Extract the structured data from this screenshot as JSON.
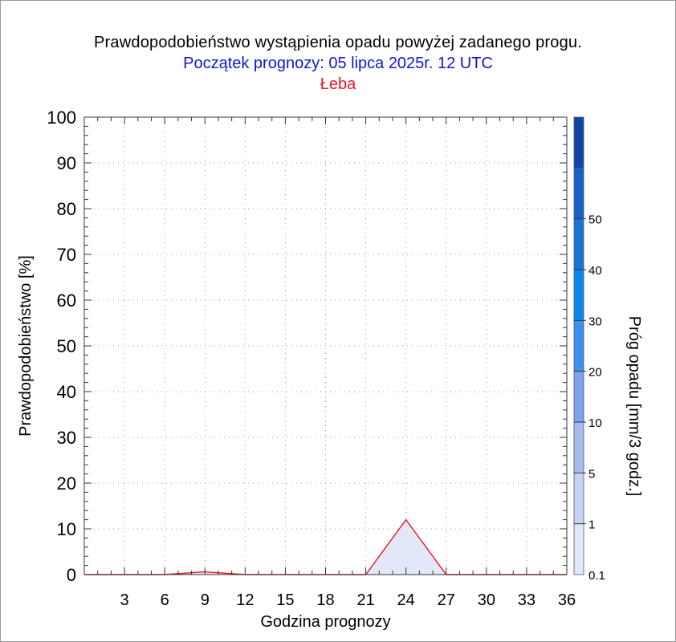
{
  "header": {
    "title": "Prawdopodobieństwo wystąpienia opadu powyżej zadanego progu.",
    "subtitle": "Początek prognozy: 05 lipca 2025r. 12 UTC",
    "location": "Łeba"
  },
  "chart_data": {
    "type": "area",
    "xlabel": "Godzina prognozy",
    "ylabel": "Prawdopodobieństwo [%]",
    "xlim": [
      0,
      36
    ],
    "ylim": [
      0,
      100
    ],
    "x_ticks": [
      3,
      6,
      9,
      12,
      15,
      18,
      21,
      24,
      27,
      30,
      33,
      36
    ],
    "y_ticks": [
      0,
      10,
      20,
      30,
      40,
      50,
      60,
      70,
      80,
      90,
      100
    ],
    "grid": true,
    "x": [
      0,
      3,
      6,
      9,
      12,
      15,
      18,
      21,
      24,
      27,
      30,
      33,
      36
    ],
    "series": [
      {
        "threshold": "0.1",
        "color": "#e2e8f8",
        "values": [
          0,
          0,
          0,
          0.6,
          0,
          0,
          0,
          0,
          12,
          0,
          0,
          0,
          0
        ]
      }
    ],
    "outline_color": "#e8152a",
    "colorbar": {
      "label": "Próg opadu [mm/3 godz.]",
      "levels": [
        "0.1",
        "1",
        "5",
        "10",
        "20",
        "30",
        "40",
        "50"
      ],
      "colors": [
        "#e2e8f8",
        "#c6d2f4",
        "#a8bdef",
        "#7ca4ec",
        "#3d8ff0",
        "#0b88f0",
        "#1a74d8",
        "#1a5fc8",
        "#0f44a8"
      ]
    }
  }
}
